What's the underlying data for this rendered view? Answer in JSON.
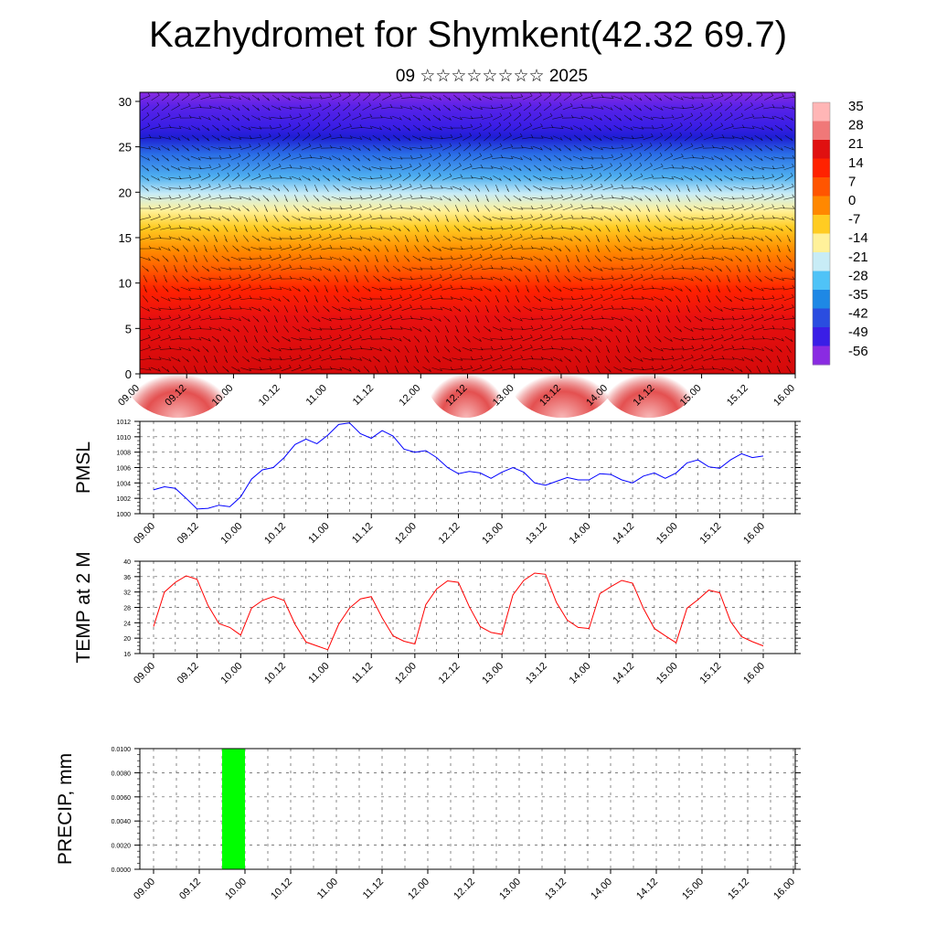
{
  "header": {
    "title": "Kazhydromet for Shymkent(42.32 69.7)",
    "subtitle": "09 ☆☆☆☆☆☆☆☆ 2025"
  },
  "time_ticks": [
    "09.00",
    "09.12",
    "10.00",
    "10.12",
    "11.00",
    "11.12",
    "12.00",
    "12.12",
    "13.00",
    "13.12",
    "14.00",
    "14.12",
    "15.00",
    "15.12",
    "16.00"
  ],
  "chart_data": [
    {
      "type": "heatmap",
      "name": "temperature-cross-section",
      "y_ticks": [
        "0",
        "5",
        "10",
        "15",
        "20",
        "25",
        "30"
      ],
      "ylim": [
        0,
        31
      ],
      "colorbar": {
        "labels": [
          "35",
          "28",
          "21",
          "14",
          "7",
          "0",
          "-7",
          "-14",
          "-21",
          "-28",
          "-35",
          "-42",
          "-49",
          "-56"
        ],
        "colors": [
          "#ffb6b6",
          "#f07878",
          "#e01010",
          "#ff2200",
          "#ff5500",
          "#ff8800",
          "#ffcc22",
          "#fff19a",
          "#c8ecf6",
          "#4fc3f7",
          "#1e88e5",
          "#2a4de0",
          "#3a1ee6",
          "#8a2be2"
        ]
      }
    },
    {
      "type": "line",
      "ylabel": "PMSL",
      "ylim": [
        1000,
        1012
      ],
      "y_ticks": [
        "1012",
        "1010",
        "1008",
        "1006",
        "1004",
        "1002",
        "1000"
      ],
      "color": "#0000ff",
      "values": [
        1003.1,
        1003.5,
        1003.3,
        1002.0,
        1000.6,
        1000.7,
        1001.1,
        1000.9,
        1002.2,
        1004.5,
        1005.7,
        1006.0,
        1007.3,
        1009.0,
        1009.7,
        1009.1,
        1010.2,
        1011.6,
        1011.8,
        1010.4,
        1009.8,
        1010.8,
        1010.1,
        1008.4,
        1008.0,
        1008.2,
        1007.3,
        1006.0,
        1005.2,
        1005.5,
        1005.3,
        1004.6,
        1005.4,
        1006.0,
        1005.4,
        1004.0,
        1003.7,
        1004.2,
        1004.7,
        1004.4,
        1004.4,
        1005.2,
        1005.1,
        1004.4,
        1004.0,
        1004.9,
        1005.3,
        1004.6,
        1005.3,
        1006.6,
        1007.0,
        1006.1,
        1005.9,
        1007.0,
        1007.8,
        1007.3,
        1007.5
      ]
    },
    {
      "type": "line",
      "ylabel": "TEMP at 2 M",
      "ylim": [
        16,
        40
      ],
      "y_ticks": [
        "40",
        "36",
        "32",
        "28",
        "24",
        "20",
        "16"
      ],
      "color": "#ff0000",
      "values": [
        23.0,
        32.0,
        34.5,
        36.2,
        35.3,
        28.5,
        23.8,
        22.8,
        20.8,
        27.8,
        29.8,
        30.8,
        29.8,
        23.6,
        19.0,
        18.0,
        17.0,
        23.6,
        27.8,
        30.2,
        30.8,
        25.3,
        20.6,
        19.2,
        18.5,
        28.7,
        32.8,
        34.9,
        34.5,
        28.2,
        23.0,
        21.5,
        21.0,
        31.2,
        35.0,
        36.9,
        36.6,
        29.3,
        24.7,
        22.8,
        22.5,
        31.6,
        33.4,
        35.0,
        34.3,
        27.7,
        22.5,
        20.6,
        18.8,
        27.8,
        30.0,
        32.5,
        31.8,
        24.3,
        20.4,
        19.1,
        18.0
      ]
    },
    {
      "type": "bar",
      "ylabel": "PRECIP, mm",
      "ylim": [
        0,
        0.01
      ],
      "y_ticks": [
        "0.0100",
        "0.0080",
        "0.0060",
        "0.0040",
        "0.0020",
        "0.0000"
      ],
      "color": "#00ff00",
      "bars": [
        {
          "from": "09.18",
          "to": "10.00",
          "value": 0.01
        }
      ]
    }
  ]
}
